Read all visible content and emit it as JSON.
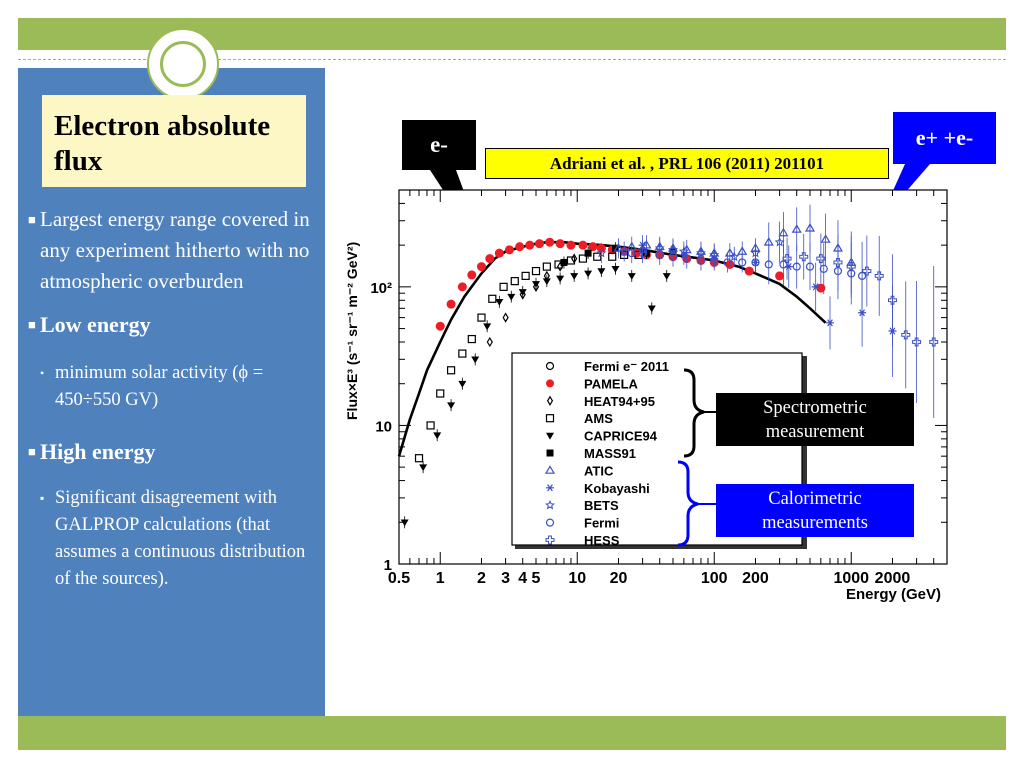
{
  "slide": {
    "title": "Electron absolute flux",
    "bullets": [
      {
        "level": 1,
        "bold": false,
        "text": "Largest energy range covered  in any experiment hitherto with no atmospheric overburden"
      },
      {
        "level": 1,
        "bold": true,
        "text": "Low energy"
      },
      {
        "level": 2,
        "bold": false,
        "text": "minimum solar activity (ϕ = 450÷550 GV)"
      },
      {
        "level": 1,
        "bold": true,
        "text": "High  energy"
      },
      {
        "level": 2,
        "bold": false,
        "text": "Significant disagreement with GALPROP calculations (that assumes a continuous distribution of the sources)."
      }
    ]
  },
  "callouts": {
    "electron": "e-",
    "electron_positron": "e+  +e-",
    "reference": "Adriani et al. , PRL 106 (2011) 201101",
    "spectrometric": "Spectrometric measurement",
    "calorimetric": "Calorimetric measurements"
  },
  "colors": {
    "accent_green": "#9bbb59",
    "sidebar_blue": "#4f81bd",
    "title_bg": "#fdf7c6",
    "pamela_red": "#ee1c24",
    "calorimetric_blue": "#0000ff"
  },
  "chart_data": {
    "type": "scatter",
    "xlabel": "Energy (GeV)",
    "ylabel": "Flux×E³ (s⁻¹ sr⁻¹ m⁻² GeV²)",
    "xscale": "log",
    "yscale": "log",
    "xlim": [
      0.5,
      5000
    ],
    "ylim": [
      1,
      500
    ],
    "xticks": [
      "0.5",
      "1",
      "2",
      "3",
      "4",
      "5",
      "10",
      "20",
      "100",
      "200",
      "1000",
      "2000"
    ],
    "yticks": [
      "1",
      "10",
      "10²"
    ],
    "legend_position": "center-right",
    "series": [
      {
        "name": "Fermi e⁻ 2011",
        "marker": "circle-open",
        "color": "#000000",
        "group": "spectrometric",
        "x": [],
        "y": []
      },
      {
        "name": "PAMELA",
        "marker": "circle-filled",
        "color": "#ee1c24",
        "group": "spectrometric",
        "x": [
          1.0,
          1.2,
          1.45,
          1.7,
          2.0,
          2.3,
          2.7,
          3.2,
          3.8,
          4.5,
          5.3,
          6.3,
          7.5,
          9,
          11,
          13,
          15,
          18,
          22,
          27,
          32,
          40,
          50,
          63,
          80,
          100,
          130,
          180,
          300,
          600
        ],
        "y": [
          52,
          75,
          100,
          122,
          140,
          160,
          175,
          185,
          195,
          200,
          205,
          210,
          205,
          200,
          200,
          195,
          190,
          185,
          180,
          175,
          170,
          170,
          165,
          160,
          155,
          150,
          145,
          130,
          120,
          98
        ]
      },
      {
        "name": "HEAT94+95",
        "marker": "diamond-open",
        "color": "#000000",
        "group": "spectrometric",
        "x": [
          2.3,
          3.0,
          4.0,
          5.0,
          6.0,
          7.5,
          9.5
        ],
        "y": [
          40,
          60,
          88,
          100,
          120,
          140,
          160
        ]
      },
      {
        "name": "AMS",
        "marker": "square-open",
        "color": "#000000",
        "group": "spectrometric",
        "x": [
          0.7,
          0.85,
          1.0,
          1.2,
          1.45,
          1.7,
          2.0,
          2.4,
          2.9,
          3.5,
          4.2,
          5.0,
          6.0,
          7.3,
          9,
          11,
          14,
          18,
          22,
          28
        ],
        "y": [
          5.8,
          10,
          17,
          25,
          33,
          42,
          60,
          82,
          100,
          110,
          120,
          130,
          140,
          145,
          155,
          160,
          165,
          165,
          170,
          170
        ]
      },
      {
        "name": "CAPRICE94",
        "marker": "triangle-down-filled",
        "color": "#000000",
        "group": "spectrometric",
        "x": [
          0.55,
          0.75,
          0.95,
          1.2,
          1.45,
          1.8,
          2.2,
          2.7,
          3.3,
          4.0,
          5.0,
          6.0,
          7.5,
          9.5,
          12,
          15,
          19,
          25,
          35,
          45
        ],
        "y": [
          2.0,
          5.0,
          8.5,
          14,
          20,
          30,
          52,
          78,
          85,
          92,
          105,
          110,
          115,
          120,
          125,
          130,
          135,
          120,
          70,
          120
        ]
      },
      {
        "name": "MASS91",
        "marker": "square-filled",
        "color": "#000000",
        "group": "spectrometric",
        "x": [
          8,
          12,
          19,
          32,
          50
        ],
        "y": [
          150,
          175,
          190,
          175,
          180
        ]
      },
      {
        "name": "ATIC",
        "marker": "triangle-up-open",
        "color": "#3b4fc4",
        "group": "calorimetric",
        "x": [
          20,
          25,
          32,
          40,
          50,
          63,
          80,
          100,
          130,
          160,
          200,
          250,
          320,
          400,
          500,
          650,
          800,
          1000
        ],
        "y": [
          190,
          195,
          200,
          195,
          190,
          185,
          180,
          175,
          175,
          180,
          190,
          210,
          245,
          260,
          265,
          220,
          190,
          150
        ]
      },
      {
        "name": "Kobayashi",
        "marker": "star-x",
        "color": "#3b4fc4",
        "group": "calorimetric",
        "x": [
          30,
          60,
          100,
          200,
          350,
          550,
          700,
          1200,
          2000
        ],
        "y": [
          200,
          170,
          160,
          150,
          140,
          100,
          55,
          65,
          48
        ]
      },
      {
        "name": "BETS",
        "marker": "star5",
        "color": "#3b4fc4",
        "group": "calorimetric",
        "x": [
          15,
          22,
          30,
          40,
          50,
          60,
          80,
          100,
          140,
          200,
          300
        ],
        "y": [
          175,
          180,
          185,
          190,
          185,
          180,
          175,
          170,
          165,
          175,
          210
        ]
      },
      {
        "name": "Fermi",
        "marker": "circle-open",
        "color": "#3b4fc4",
        "group": "calorimetric",
        "x": [
          25,
          30,
          40,
          50,
          63,
          80,
          100,
          125,
          160,
          200,
          250,
          320,
          400,
          500,
          630,
          800,
          1000,
          1200
        ],
        "y": [
          175,
          175,
          170,
          165,
          160,
          155,
          155,
          150,
          150,
          150,
          145,
          145,
          140,
          140,
          135,
          130,
          125,
          120
        ]
      },
      {
        "name": "HESS",
        "marker": "plus-open",
        "color": "#3b4fc4",
        "group": "calorimetric",
        "x": [
          340,
          450,
          600,
          800,
          1000,
          1300,
          1600,
          2000,
          2500,
          3000,
          4000
        ],
        "y": [
          160,
          165,
          160,
          150,
          140,
          130,
          120,
          80,
          45,
          40,
          40
        ]
      },
      {
        "name": "GALPROP",
        "type": "line",
        "color": "#000000",
        "x": [
          0.5,
          0.6,
          0.7,
          0.8,
          1,
          1.2,
          1.5,
          2,
          2.5,
          3,
          4,
          5,
          6,
          8,
          10,
          15,
          20,
          30,
          50,
          80,
          100,
          150,
          200,
          300,
          400,
          500,
          650
        ],
        "y": [
          6,
          11,
          17,
          25,
          40,
          58,
          85,
          125,
          160,
          180,
          195,
          205,
          210,
          210,
          205,
          200,
          195,
          185,
          170,
          160,
          155,
          140,
          125,
          105,
          85,
          70,
          55
        ]
      }
    ]
  }
}
